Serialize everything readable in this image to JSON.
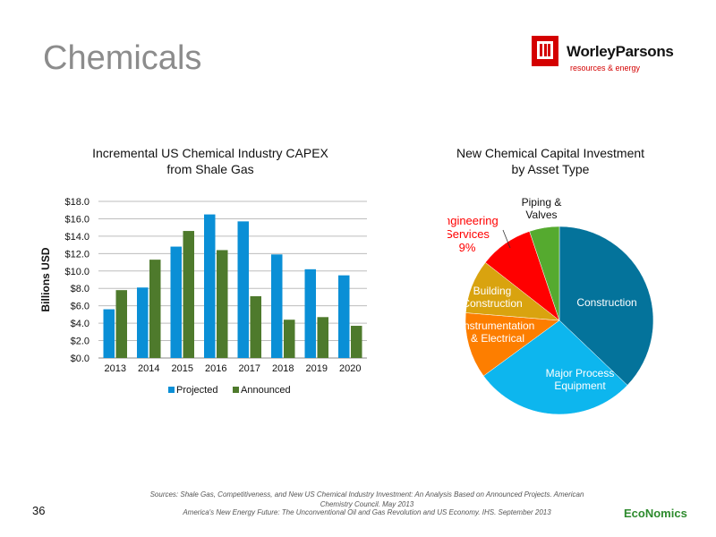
{
  "slide": {
    "title": "Chemicals",
    "page_number": "36"
  },
  "logo": {
    "name": "WorleyParsons",
    "tagline": "resources & energy"
  },
  "footer": {
    "source_line_1": "Sources: Shale Gas, Competitiveness, and New US Chemical Industry Investment: An Analysis Based on Announced Projects. American Chemistry Council. May 2013",
    "source_line_2": "America's New Energy Future: The Unconventional Oil and Gas Revolution and US Economy. IHS. September 2013",
    "brand_part_1": "Eco",
    "brand_part_2": "Nomics"
  },
  "chart_data": [
    {
      "type": "bar",
      "title": "Incremental US Chemical Industry CAPEX from Shale Gas",
      "title_lines": [
        "Incremental US Chemical Industry CAPEX",
        "from Shale Gas"
      ],
      "xlabel": "",
      "ylabel": "Billions USD",
      "ylim": [
        0,
        18
      ],
      "yticks": [
        "$0.0",
        "$2.0",
        "$4.0",
        "$6.0",
        "$8.0",
        "$10.0",
        "$12.0",
        "$14.0",
        "$16.0",
        "$18.0"
      ],
      "categories": [
        "2013",
        "2014",
        "2015",
        "2016",
        "2017",
        "2018",
        "2019",
        "2020"
      ],
      "series": [
        {
          "name": "Projected",
          "color": "#0a8fd6",
          "values": [
            5.6,
            8.1,
            12.8,
            16.5,
            15.7,
            11.9,
            10.2,
            9.5
          ]
        },
        {
          "name": "Announced",
          "color": "#4e7a2c",
          "values": [
            7.8,
            11.3,
            14.6,
            12.4,
            7.1,
            4.4,
            4.7,
            3.7
          ]
        }
      ],
      "grid": true,
      "legend": "bottom"
    },
    {
      "type": "pie",
      "title": "New Chemical Capital Investment by Asset Type",
      "title_lines": [
        "New Chemical Capital Investment",
        "by Asset Type"
      ],
      "slices": [
        {
          "label_lines": [
            "Construction"
          ],
          "value": 36,
          "color": "#04739b",
          "label_color": "#ffffff"
        },
        {
          "label_lines": [
            "Major Process",
            "Equipment"
          ],
          "value": 27,
          "color": "#0db6ee",
          "label_color": "#ffffff"
        },
        {
          "label_lines": [
            "Instrumentation",
            "& Electrical"
          ],
          "value": 11,
          "color": "#fd7e00",
          "label_color": "#ffffff"
        },
        {
          "label_lines": [
            "Building",
            "Construction"
          ],
          "value": 9,
          "color": "#d9a30f",
          "label_color": "#ffffff"
        },
        {
          "label_lines": [
            "Engineering",
            "Services",
            "9%"
          ],
          "value": 9,
          "color": "#ff0000",
          "label_color": "#ff0000"
        },
        {
          "label_lines": [
            "Piping &",
            "Valves"
          ],
          "value": 5,
          "color": "#55aa2f",
          "label_color": "#111111"
        }
      ],
      "legend": "none"
    }
  ]
}
